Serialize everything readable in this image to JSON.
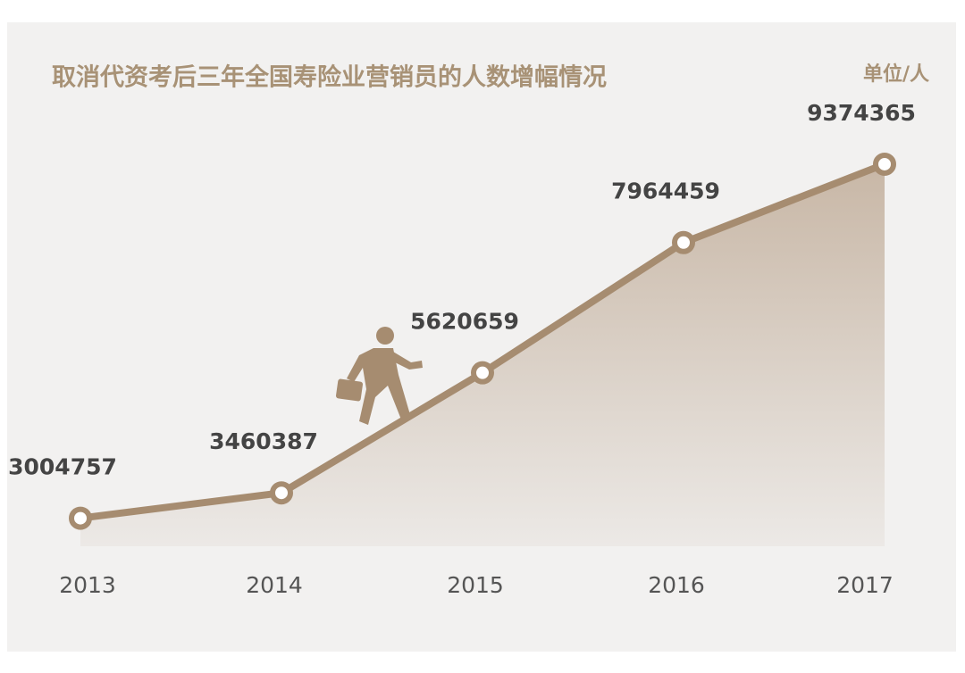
{
  "chart_data": {
    "type": "line",
    "title": "取消代资考后三年全国寿险业营销员的人数增幅情况",
    "unit": "单位/人",
    "categories": [
      "2013",
      "2014",
      "2015",
      "2016",
      "2017"
    ],
    "values": [
      3004757,
      3460387,
      5620659,
      7964459,
      9374365
    ],
    "color": "#a68c70",
    "ylim": [
      2500000,
      10000000
    ]
  }
}
